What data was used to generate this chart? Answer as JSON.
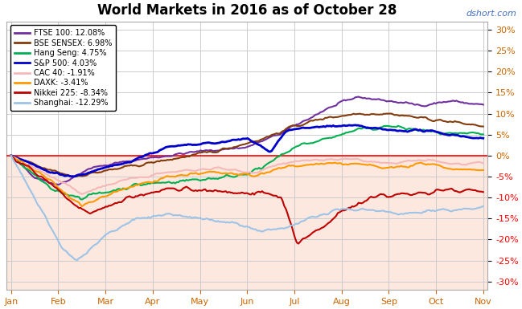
{
  "title": "World Markets in 2016 as of October 28",
  "watermark": "dshort.com",
  "ylim": [
    -32,
    32
  ],
  "yticks": [
    -30,
    -25,
    -20,
    -15,
    -10,
    -5,
    0,
    5,
    10,
    15,
    20,
    25,
    30
  ],
  "background_color": "#ffffff",
  "plot_bg_positive": "#ffffff",
  "plot_bg_negative": "#fde8e0",
  "zero_line_color": "#ff0000",
  "grid_color": "#cccccc",
  "tick_label_color": "#cc6600",
  "neg_tick_color": "#ff0000",
  "series": [
    {
      "name": "FTSE 100: 12.08%",
      "color": "#7030a0",
      "lw": 1.5
    },
    {
      "name": "BSE SENSEX: 6.98%",
      "color": "#843c0c",
      "lw": 1.5
    },
    {
      "name": "Hang Seng: 4.75%",
      "color": "#00b050",
      "lw": 1.5
    },
    {
      "name": "S&P 500: 4.03%",
      "color": "#0000cc",
      "lw": 2.0
    },
    {
      "name": "CAC 40: -1.91%",
      "color": "#f4b8b8",
      "lw": 1.5
    },
    {
      "name": "DAXK: -3.41%",
      "color": "#ff9900",
      "lw": 1.5
    },
    {
      "name": "Nikkei 225: -8.34%",
      "color": "#c00000",
      "lw": 1.5
    },
    {
      "name": "Shanghai: -12.29%",
      "color": "#9dc3e6",
      "lw": 1.5
    }
  ],
  "xlabel_months": [
    "Jan",
    "Feb",
    "Mar",
    "Apr",
    "May",
    "Jun",
    "Jul",
    "Aug",
    "Sep",
    "Oct",
    "Nov"
  ],
  "n_points": 300
}
